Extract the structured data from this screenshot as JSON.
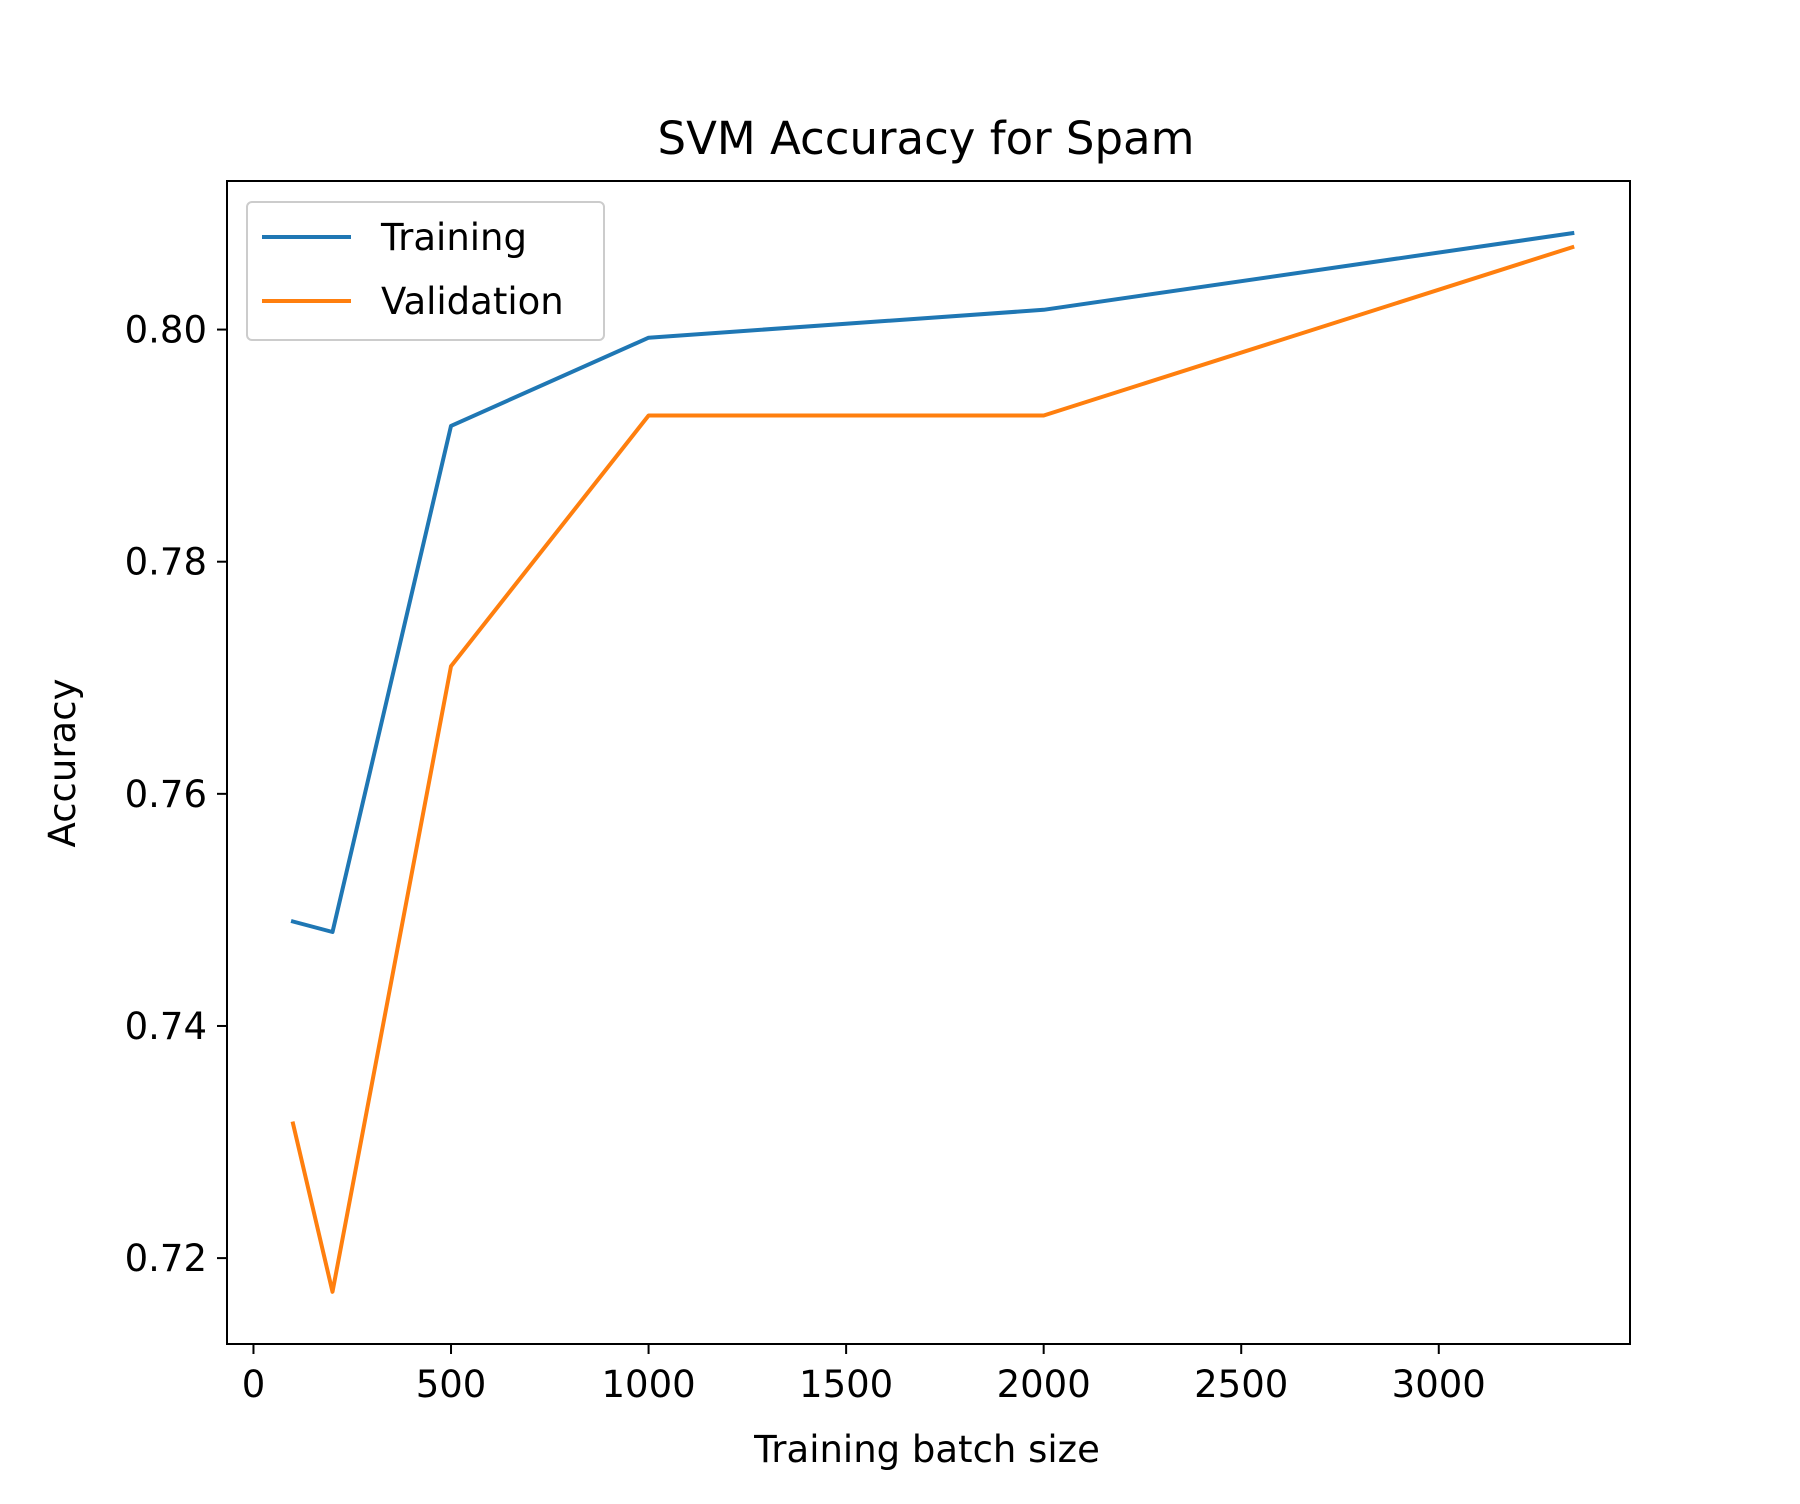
{
  "chart_data": {
    "type": "line",
    "title": "SVM Accuracy for Spam",
    "xlabel": "Training batch size",
    "ylabel": "Accuracy",
    "x": [
      100,
      200,
      500,
      1000,
      2000,
      3338
    ],
    "series": [
      {
        "name": "Training",
        "color": "#1f77b4",
        "values": [
          0.749,
          0.7481,
          0.7917,
          0.7993,
          0.8017,
          0.8083
        ]
      },
      {
        "name": "Validation",
        "color": "#ff7f0e",
        "values": [
          0.7316,
          0.7171,
          0.771,
          0.7926,
          0.7926,
          0.8071
        ]
      }
    ],
    "xlim": [
      -67,
      3484
    ],
    "ylim": [
      0.7126,
      0.8128
    ],
    "xticks": [
      {
        "value": 0,
        "label": "0"
      },
      {
        "value": 500,
        "label": "500"
      },
      {
        "value": 1000,
        "label": "1000"
      },
      {
        "value": 1500,
        "label": "1500"
      },
      {
        "value": 2000,
        "label": "2000"
      },
      {
        "value": 2500,
        "label": "2500"
      },
      {
        "value": 3000,
        "label": "3000"
      }
    ],
    "yticks": [
      {
        "value": 0.72,
        "label": "0.72"
      },
      {
        "value": 0.74,
        "label": "0.74"
      },
      {
        "value": 0.76,
        "label": "0.76"
      },
      {
        "value": 0.78,
        "label": "0.78"
      },
      {
        "value": 0.8,
        "label": "0.80"
      }
    ],
    "grid": false,
    "legend_position": "upper-left"
  }
}
